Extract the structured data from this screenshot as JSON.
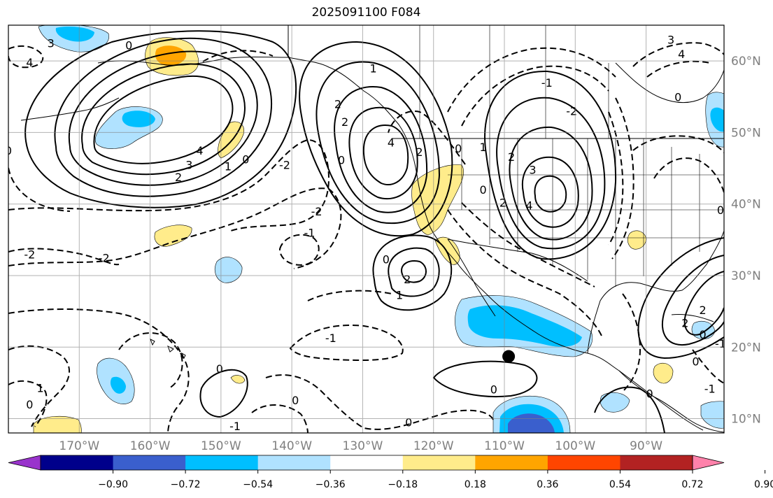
{
  "title": "2025091100 F084",
  "map": {
    "lon_range": [
      -180,
      -79
    ],
    "lat_range": [
      8,
      65
    ],
    "lon_ticks": [
      {
        "value": -170,
        "label": "170°W"
      },
      {
        "value": -160,
        "label": "160°W"
      },
      {
        "value": -150,
        "label": "150°W"
      },
      {
        "value": -140,
        "label": "140°W"
      },
      {
        "value": -130,
        "label": "130°W"
      },
      {
        "value": -120,
        "label": "120°W"
      },
      {
        "value": -110,
        "label": "110°W"
      },
      {
        "value": -100,
        "label": "100°W"
      },
      {
        "value": -90,
        "label": "90°W"
      }
    ],
    "lat_ticks": [
      {
        "value": 60,
        "label": "60°N"
      },
      {
        "value": 50,
        "label": "50°N"
      },
      {
        "value": 40,
        "label": "40°N"
      },
      {
        "value": 30,
        "label": "30°N"
      },
      {
        "value": 20,
        "label": "20°N"
      },
      {
        "value": 10,
        "label": "10°N"
      }
    ],
    "grid": true,
    "marker": {
      "lon": -109.4,
      "lat": 18.7,
      "color": "#000000"
    }
  },
  "contour_labels": [
    {
      "text": "0",
      "lon": -163,
      "lat": 62.2
    },
    {
      "text": "3",
      "lon": -174,
      "lat": 62.5
    },
    {
      "text": "4",
      "lon": -177,
      "lat": 59.8
    },
    {
      "text": "4",
      "lon": -153,
      "lat": 47.5
    },
    {
      "text": "3",
      "lon": -154.5,
      "lat": 45.5
    },
    {
      "text": "2",
      "lon": -156,
      "lat": 43.8
    },
    {
      "text": "1",
      "lon": -149,
      "lat": 45.3
    },
    {
      "text": "0",
      "lon": -146.5,
      "lat": 46.3
    },
    {
      "text": "0",
      "lon": -180,
      "lat": 47.5
    },
    {
      "text": "-2",
      "lon": -141,
      "lat": 45.5
    },
    {
      "text": "-2",
      "lon": -136.5,
      "lat": 39.0
    },
    {
      "text": "-1",
      "lon": -137.5,
      "lat": 36.0
    },
    {
      "text": "-2",
      "lon": -177,
      "lat": 33.0
    },
    {
      "text": "-2",
      "lon": -166.5,
      "lat": 32.5
    },
    {
      "text": "0",
      "lon": -133,
      "lat": 46.2
    },
    {
      "text": "2",
      "lon": -133.5,
      "lat": 54.0
    },
    {
      "text": "2",
      "lon": -132.5,
      "lat": 51.5
    },
    {
      "text": "1",
      "lon": -128.5,
      "lat": 59.0
    },
    {
      "text": "4",
      "lon": -126,
      "lat": 48.6
    },
    {
      "text": "2",
      "lon": -122,
      "lat": 47.3
    },
    {
      "text": "0",
      "lon": -126.7,
      "lat": 32.3
    },
    {
      "text": "2",
      "lon": -123.7,
      "lat": 29.5
    },
    {
      "text": "1",
      "lon": -124.8,
      "lat": 27.3
    },
    {
      "text": "-1",
      "lon": -134.5,
      "lat": 21.3
    },
    {
      "text": "0",
      "lon": -150.2,
      "lat": 17.0
    },
    {
      "text": "0",
      "lon": -111.5,
      "lat": 14.1
    },
    {
      "text": "0",
      "lon": -123.5,
      "lat": 9.5
    },
    {
      "text": "-1",
      "lon": -148,
      "lat": 9.0
    },
    {
      "text": "0",
      "lon": -139.5,
      "lat": 12.6
    },
    {
      "text": "1",
      "lon": -175.5,
      "lat": 14.3
    },
    {
      "text": "0",
      "lon": -177,
      "lat": 12.0
    },
    {
      "text": "0",
      "lon": -116.5,
      "lat": 47.8
    },
    {
      "text": "1",
      "lon": -113,
      "lat": 48.0
    },
    {
      "text": "2",
      "lon": -109,
      "lat": 46.6
    },
    {
      "text": "0",
      "lon": -113,
      "lat": 42.0
    },
    {
      "text": "2",
      "lon": -110.2,
      "lat": 40.2
    },
    {
      "text": "3",
      "lon": -106,
      "lat": 44.8
    },
    {
      "text": "4",
      "lon": -106.5,
      "lat": 39.8
    },
    {
      "text": "-1",
      "lon": -104,
      "lat": 57.0
    },
    {
      "text": "-2",
      "lon": -100.5,
      "lat": 53.0
    },
    {
      "text": "3",
      "lon": -86.5,
      "lat": 63.0
    },
    {
      "text": "4",
      "lon": -85,
      "lat": 61.0
    },
    {
      "text": "2",
      "lon": -82,
      "lat": 25.2
    },
    {
      "text": "2",
      "lon": -84.5,
      "lat": 23.4
    },
    {
      "text": "0",
      "lon": -82,
      "lat": 21.8
    },
    {
      "text": "-1",
      "lon": -79.5,
      "lat": 20.5
    },
    {
      "text": "0",
      "lon": -83,
      "lat": 18.0
    },
    {
      "text": "0",
      "lon": -89.5,
      "lat": 13.5
    },
    {
      "text": "-1",
      "lon": -81,
      "lat": 14.2
    },
    {
      "text": "0",
      "lon": -79.5,
      "lat": 39.2
    },
    {
      "text": "0",
      "lon": -85.5,
      "lat": 55.0
    }
  ],
  "colorbar": {
    "colors": [
      "#9933cc",
      "#00008b",
      "#3a5fcd",
      "#00bfff",
      "#b0e2ff",
      "#ffffff",
      "#ffec8b",
      "#ffa500",
      "#ff4500",
      "#b22222",
      "#ff82ab"
    ],
    "bounds": [
      -0.9,
      -0.72,
      -0.54,
      -0.36,
      -0.18,
      0.18,
      0.36,
      0.54,
      0.72,
      0.9
    ],
    "tick_labels": [
      "−0.90",
      "−0.72",
      "−0.54",
      "−0.36",
      "−0.18",
      "0.18",
      "0.36",
      "0.54",
      "0.72",
      "0.90"
    ],
    "extend": "both"
  }
}
